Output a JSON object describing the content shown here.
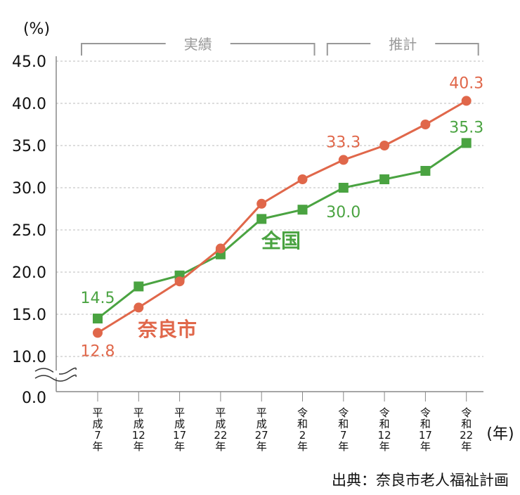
{
  "chart_data": {
    "type": "line",
    "ylabel": "(%)",
    "xlabel": "(年)",
    "ylim": [
      0,
      45
    ],
    "axis_break": [
      0,
      10
    ],
    "yticks": [
      "0.0",
      "10.0",
      "15.0",
      "20.0",
      "25.0",
      "30.0",
      "35.0",
      "40.0",
      "45.0"
    ],
    "grid": true,
    "categories": [
      "平成7年",
      "平成12年",
      "平成17年",
      "平成22年",
      "平成27年",
      "令和2年",
      "令和7年",
      "令和12年",
      "令和17年",
      "令和22年"
    ],
    "category_lines": [
      [
        "平",
        "成",
        "7",
        "年"
      ],
      [
        "平",
        "成",
        "12",
        "年"
      ],
      [
        "平",
        "成",
        "17",
        "年"
      ],
      [
        "平",
        "成",
        "22",
        "年"
      ],
      [
        "平",
        "成",
        "27",
        "年"
      ],
      [
        "令",
        "和",
        "2",
        "年"
      ],
      [
        "令",
        "和",
        "7",
        "年"
      ],
      [
        "令",
        "和",
        "12",
        "年"
      ],
      [
        "令",
        "和",
        "17",
        "年"
      ],
      [
        "令",
        "和",
        "22",
        "年"
      ]
    ],
    "groups": [
      {
        "label": "実績",
        "from": 0,
        "to": 5
      },
      {
        "label": "推計",
        "from": 6,
        "to": 9
      }
    ],
    "series": [
      {
        "name": "奈良市",
        "color": "#e0674a",
        "marker": "circle",
        "values": [
          12.8,
          15.8,
          18.9,
          22.8,
          28.1,
          31.0,
          33.3,
          35.0,
          37.5,
          40.3
        ],
        "labels": {
          "0": "12.8",
          "6": "33.3",
          "9": "40.3"
        }
      },
      {
        "name": "全国",
        "color": "#4aa341",
        "marker": "square",
        "values": [
          14.5,
          18.3,
          19.6,
          22.1,
          26.3,
          27.4,
          30.0,
          31.0,
          32.0,
          35.3
        ],
        "labels": {
          "0": "14.5",
          "6": "30.0",
          "9": "35.3"
        }
      }
    ],
    "source": "出典：奈良市老人福祉計画"
  }
}
